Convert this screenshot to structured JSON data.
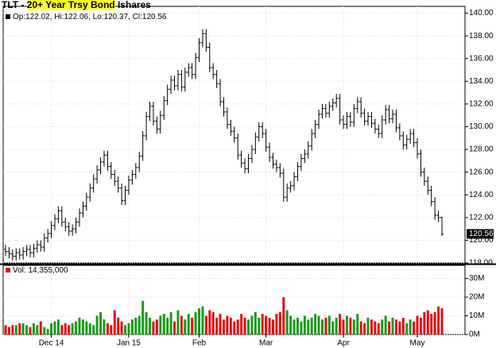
{
  "chart_data": {
    "type": "ohlc",
    "title_prefix": "TLT - ",
    "title_highlight": "20+ Year Trsy Bond",
    "title_suffix": " Ishares",
    "price_legend": "Op:122.02, Hi:122.06, Lo:120.37, Cl:120.56",
    "volume_legend": "Vol: 14,355,000",
    "categories": [
      null,
      null,
      null,
      null,
      null,
      null,
      null,
      null,
      null,
      null,
      null,
      null,
      null,
      "Dec 14",
      null,
      null,
      null,
      null,
      null,
      null,
      null,
      null,
      null,
      null,
      null,
      null,
      null,
      null,
      null,
      null,
      null,
      null,
      null,
      null,
      null,
      "Jan 15",
      null,
      null,
      null,
      null,
      null,
      null,
      null,
      null,
      null,
      null,
      null,
      null,
      null,
      null,
      null,
      null,
      null,
      null,
      null,
      "Feb",
      null,
      null,
      null,
      null,
      null,
      null,
      null,
      null,
      null,
      null,
      null,
      null,
      null,
      null,
      null,
      null,
      null,
      null,
      "Mar",
      null,
      null,
      null,
      null,
      null,
      null,
      null,
      null,
      null,
      null,
      null,
      null,
      null,
      null,
      null,
      null,
      null,
      null,
      null,
      null,
      null,
      "Apr",
      null,
      null,
      null,
      null,
      null,
      null,
      null,
      null,
      null,
      null,
      null,
      null,
      null,
      null,
      null,
      null,
      null,
      null,
      null,
      null,
      "May",
      null,
      null,
      null,
      null,
      null,
      null,
      null
    ],
    "open": [
      119.2,
      119.0,
      118.8,
      118.6,
      118.9,
      118.7,
      119.0,
      119.2,
      118.9,
      119.3,
      119.6,
      119.4,
      120.2,
      120.6,
      121.3,
      121.9,
      122.6,
      121.6,
      121.2,
      120.8,
      121.0,
      121.6,
      122.4,
      123.0,
      123.8,
      124.6,
      125.4,
      126.2,
      126.9,
      127.5,
      126.5,
      125.8,
      125.2,
      124.6,
      123.5,
      124.4,
      125.3,
      125.8,
      126.4,
      127.4,
      129.2,
      130.9,
      131.8,
      130.5,
      129.8,
      131.0,
      132.3,
      133.3,
      134.1,
      133.6,
      134.6,
      133.5,
      134.8,
      135.2,
      134.6,
      136.1,
      137.4,
      138.2,
      137.0,
      135.2,
      134.6,
      133.8,
      132.2,
      131.3,
      130.2,
      129.6,
      129.0,
      127.5,
      126.8,
      126.3,
      127.2,
      128.0,
      129.1,
      130.0,
      129.4,
      128.2,
      127.3,
      126.7,
      126.4,
      125.9,
      123.8,
      124.6,
      124.8,
      125.6,
      126.5,
      127.2,
      127.6,
      128.3,
      129.4,
      130.2,
      131.1,
      131.6,
      131.2,
      131.8,
      132.1,
      132.5,
      130.6,
      130.2,
      130.9,
      130.4,
      131.6,
      132.2,
      131.2,
      130.5,
      130.9,
      130.3,
      129.8,
      129.4,
      130.6,
      131.5,
      130.7,
      131.1,
      129.9,
      129.2,
      128.4,
      128.9,
      129.4,
      128.6,
      127.6,
      126.0,
      125.2,
      124.4,
      123.4,
      122.2,
      122.02
    ],
    "high": [
      119.6,
      119.4,
      119.2,
      119.3,
      119.3,
      119.4,
      119.6,
      119.6,
      119.7,
      120.0,
      120.0,
      120.6,
      121.0,
      121.7,
      122.3,
      123.0,
      123.0,
      122.0,
      121.6,
      121.4,
      122.0,
      122.8,
      123.4,
      124.2,
      125.0,
      125.8,
      126.6,
      127.3,
      127.9,
      127.9,
      126.9,
      126.2,
      125.6,
      125.0,
      124.8,
      125.7,
      126.2,
      126.8,
      127.8,
      129.6,
      131.3,
      132.2,
      132.2,
      130.9,
      131.4,
      132.7,
      133.7,
      134.5,
      134.5,
      135.0,
      135.0,
      135.2,
      135.6,
      135.6,
      136.5,
      137.8,
      138.6,
      138.6,
      137.4,
      135.6,
      135.0,
      134.2,
      132.6,
      131.7,
      130.6,
      130.0,
      129.4,
      127.9,
      127.2,
      127.6,
      128.4,
      129.5,
      130.4,
      130.4,
      129.8,
      128.6,
      127.7,
      127.1,
      126.8,
      126.3,
      125.0,
      125.2,
      126.0,
      126.9,
      127.6,
      128.0,
      128.7,
      129.8,
      130.6,
      131.5,
      132.0,
      132.0,
      132.2,
      132.5,
      132.9,
      132.9,
      131.0,
      131.3,
      131.3,
      132.0,
      132.6,
      132.6,
      131.6,
      131.3,
      131.3,
      130.7,
      130.2,
      131.0,
      131.9,
      131.9,
      131.5,
      131.5,
      130.3,
      129.6,
      129.3,
      129.8,
      129.8,
      129.0,
      128.0,
      126.4,
      125.6,
      124.8,
      123.8,
      122.6,
      122.06
    ],
    "low": [
      118.6,
      118.4,
      118.2,
      118.2,
      118.3,
      118.3,
      118.6,
      118.5,
      118.5,
      118.9,
      119.0,
      119.0,
      119.8,
      120.2,
      120.9,
      121.5,
      121.2,
      120.8,
      120.4,
      120.4,
      120.6,
      121.2,
      122.0,
      122.6,
      123.4,
      124.2,
      125.0,
      125.8,
      126.5,
      126.1,
      125.4,
      124.8,
      124.2,
      123.1,
      123.1,
      124.0,
      124.9,
      125.4,
      126.0,
      127.0,
      128.8,
      130.5,
      130.1,
      129.4,
      129.4,
      130.6,
      131.9,
      132.9,
      133.2,
      133.2,
      133.1,
      133.1,
      134.4,
      134.2,
      134.2,
      135.7,
      137.0,
      136.6,
      134.8,
      134.2,
      133.4,
      131.8,
      130.9,
      129.8,
      129.2,
      128.6,
      127.1,
      126.4,
      125.9,
      125.9,
      126.8,
      127.6,
      128.7,
      129.0,
      127.8,
      126.9,
      126.3,
      126.0,
      125.5,
      123.4,
      123.4,
      124.2,
      124.4,
      125.2,
      126.1,
      126.8,
      127.2,
      127.9,
      129.0,
      129.8,
      130.7,
      130.8,
      130.8,
      131.4,
      131.7,
      130.2,
      129.8,
      129.8,
      130.0,
      130.0,
      131.2,
      130.8,
      130.1,
      130.1,
      129.9,
      129.4,
      129.0,
      129.0,
      130.2,
      130.3,
      130.3,
      129.5,
      128.8,
      128.0,
      128.0,
      128.5,
      128.2,
      127.2,
      125.6,
      124.8,
      124.0,
      123.0,
      121.8,
      121.6,
      120.37
    ],
    "close": [
      119.0,
      118.8,
      118.6,
      118.9,
      118.7,
      119.0,
      119.2,
      118.9,
      119.3,
      119.6,
      119.4,
      120.2,
      120.6,
      121.3,
      121.9,
      122.6,
      121.6,
      121.2,
      120.8,
      121.0,
      121.6,
      122.4,
      123.0,
      123.8,
      124.6,
      125.4,
      126.2,
      126.9,
      127.5,
      126.5,
      125.8,
      125.2,
      124.6,
      123.5,
      124.4,
      125.3,
      125.8,
      126.4,
      127.4,
      129.2,
      130.9,
      131.8,
      130.5,
      129.8,
      131.0,
      132.3,
      133.3,
      134.1,
      133.6,
      134.6,
      133.5,
      134.8,
      135.2,
      134.6,
      136.1,
      137.4,
      138.2,
      137.0,
      135.2,
      134.6,
      133.8,
      132.2,
      131.3,
      130.2,
      129.6,
      129.0,
      127.5,
      126.8,
      126.3,
      127.2,
      128.0,
      129.1,
      130.0,
      129.4,
      128.2,
      127.3,
      126.7,
      126.4,
      125.9,
      123.8,
      124.6,
      124.8,
      125.6,
      126.5,
      127.2,
      127.6,
      128.3,
      129.4,
      130.2,
      131.1,
      131.6,
      131.2,
      131.8,
      132.1,
      132.5,
      130.6,
      130.2,
      130.9,
      130.4,
      131.6,
      132.2,
      131.2,
      130.5,
      130.9,
      130.3,
      129.8,
      129.4,
      130.6,
      131.5,
      130.7,
      131.1,
      129.9,
      129.2,
      128.4,
      128.9,
      129.4,
      128.6,
      127.6,
      126.0,
      125.2,
      124.4,
      123.4,
      122.2,
      122.0,
      120.56
    ],
    "volume": [
      5,
      4,
      5,
      5,
      6,
      6,
      5,
      4,
      6,
      5,
      7,
      4,
      3,
      6,
      7,
      8,
      5,
      6,
      5,
      6,
      7,
      9,
      8,
      7,
      6,
      5,
      10,
      12,
      8,
      6,
      5,
      13,
      9,
      7,
      5,
      6,
      8,
      9,
      10,
      18,
      12,
      9,
      7,
      8,
      10,
      11,
      9,
      12,
      7,
      13,
      10,
      8,
      11,
      9,
      12,
      14,
      15,
      10,
      13,
      12,
      9,
      11,
      8,
      10,
      9,
      7,
      8,
      11,
      9,
      8,
      10,
      12,
      9,
      11,
      10,
      9,
      8,
      11,
      12,
      20,
      13,
      10,
      8,
      9,
      7,
      10,
      8,
      9,
      11,
      10,
      8,
      9,
      10,
      7,
      9,
      11,
      8,
      10,
      9,
      8,
      11,
      7,
      6,
      9,
      8,
      7,
      6,
      8,
      10,
      7,
      9,
      8,
      7,
      9,
      6,
      8,
      7,
      10,
      9,
      12,
      13,
      11,
      12,
      15,
      14
    ],
    "bar_color": "#000000",
    "up_color": "#1a9a1a",
    "down_color": "#e01010",
    "last_box_color": "#000000",
    "ylim": [
      118,
      140.6
    ],
    "yticks": [
      {
        "value": 118,
        "label": "118.00"
      },
      {
        "value": 120,
        "label": "120.00"
      },
      {
        "value": 122,
        "label": "122.00"
      },
      {
        "value": 124,
        "label": "124.00"
      },
      {
        "value": 126,
        "label": "126.00"
      },
      {
        "value": 128,
        "label": "128.00"
      },
      {
        "value": 130,
        "label": "130.00"
      },
      {
        "value": 132,
        "label": "132.00"
      },
      {
        "value": 134,
        "label": "134.00"
      },
      {
        "value": 136,
        "label": "136.00"
      },
      {
        "value": 138,
        "label": "138.00"
      },
      {
        "value": 140,
        "label": "140.00"
      }
    ],
    "y2lim": [
      0,
      37
    ],
    "y2ticks": [
      {
        "value": 0,
        "label": "0M"
      },
      {
        "value": 10,
        "label": "10M"
      },
      {
        "value": 20,
        "label": "20M"
      },
      {
        "value": 30,
        "label": "30M"
      }
    ],
    "grid": true
  }
}
